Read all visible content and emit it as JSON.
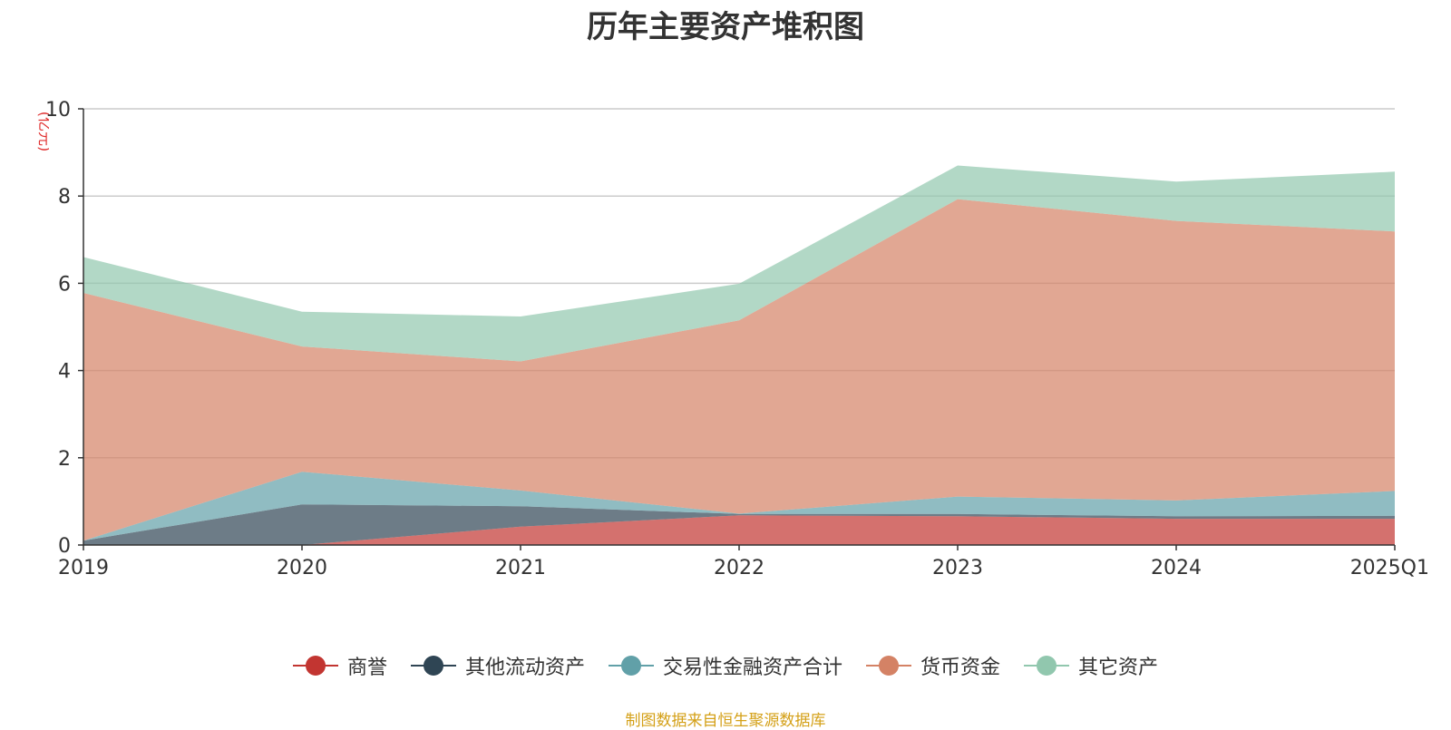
{
  "chart_data": {
    "type": "area",
    "title": "历年主要资产堆积图",
    "unit_label": "(亿元)",
    "categories": [
      "2019",
      "2020",
      "2021",
      "2022",
      "2023",
      "2024",
      "2025Q1"
    ],
    "ylim": [
      0,
      10
    ],
    "yticks": [
      0,
      2,
      4,
      6,
      8,
      10
    ],
    "stacked": true,
    "grid": true,
    "legend_position": "bottom",
    "series": [
      {
        "name": "商誉",
        "color": "#c23531",
        "values": [
          0,
          0,
          0.42,
          0.68,
          0.66,
          0.6,
          0.6
        ]
      },
      {
        "name": "其他流动资产",
        "color": "#2f4554",
        "values": [
          0.1,
          0.93,
          0.47,
          0.03,
          0.05,
          0.06,
          0.07
        ]
      },
      {
        "name": "交易性金融资产合计",
        "color": "#61a0a8",
        "values": [
          0,
          0.75,
          0.36,
          0.01,
          0.4,
          0.36,
          0.57
        ]
      },
      {
        "name": "货币资金",
        "color": "#d48265",
        "values": [
          5.68,
          2.87,
          2.96,
          4.43,
          6.82,
          6.41,
          5.95
        ]
      },
      {
        "name": "其它资产",
        "color": "#91c7ae",
        "values": [
          0.82,
          0.8,
          1.03,
          0.84,
          0.77,
          0.9,
          1.37
        ]
      }
    ]
  },
  "footer": {
    "source": "制图数据来自恒生聚源数据库"
  }
}
